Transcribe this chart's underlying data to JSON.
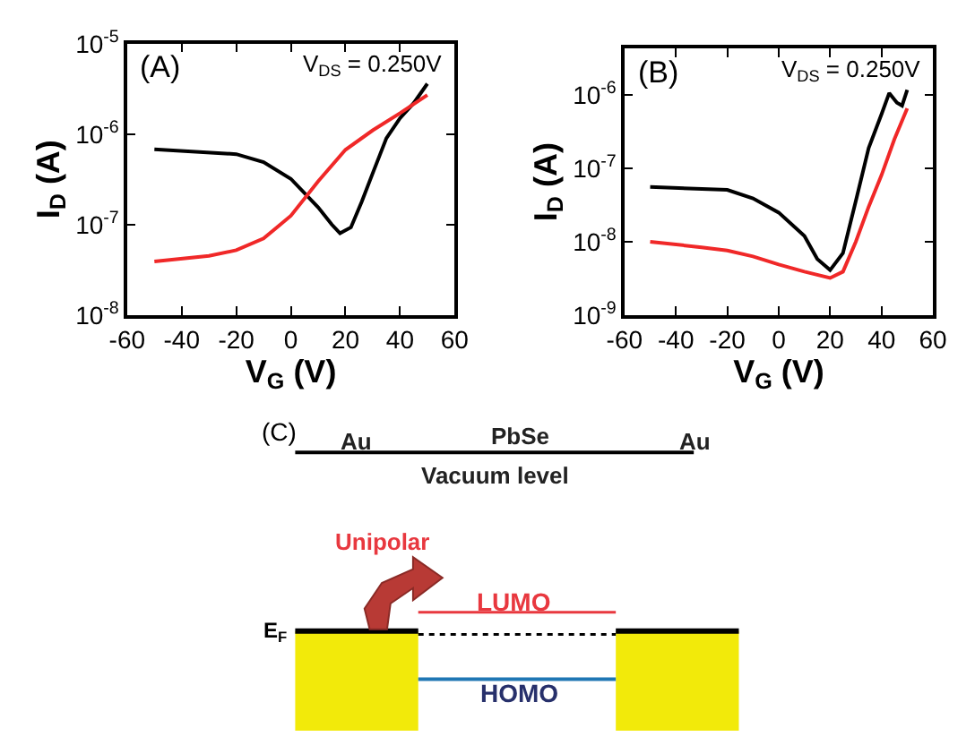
{
  "chart_data": [
    {
      "type": "line",
      "xlabel": "V$_{G}$ (V)",
      "ylabel": "I$_{D}$ (A)",
      "annotations": [
        "(A)",
        "V$_{DS}$ = 0.250V"
      ],
      "log": "y",
      "marker": "none",
      "line_style": "solid",
      "xlim": [
        -60,
        60
      ],
      "xticks": [
        -60,
        -40,
        -20,
        0,
        20,
        40,
        60
      ],
      "ylim": [
        1e-08,
        1e-05
      ],
      "yticks": [
        {
          "value": 1e-08,
          "label": "10$^{-8}$"
        },
        {
          "value": 1e-07,
          "label": "10$^{-7}$"
        },
        {
          "value": 1e-06,
          "label": "10$^{-6}$"
        },
        {
          "value": 1e-05,
          "label": "10$^{-5}$"
        }
      ],
      "series": [
        {
          "color": "#000000",
          "x": [
            -50,
            -20,
            -10,
            0,
            10,
            15,
            18,
            22,
            26,
            30,
            35,
            40,
            45,
            50
          ],
          "values": [
            6.8e-07,
            6e-07,
            4.9e-07,
            3.2e-07,
            1.55e-07,
            1e-07,
            8e-08,
            9.3e-08,
            1.8e-07,
            3.7e-07,
            9e-07,
            1.5e-06,
            2.2e-06,
            3.6e-06
          ]
        },
        {
          "color": "#f02828",
          "x": [
            -50,
            -30,
            -20,
            -10,
            0,
            10,
            20,
            30,
            40,
            50
          ],
          "values": [
            3.9e-08,
            4.5e-08,
            5.2e-08,
            7e-08,
            1.25e-07,
            3e-07,
            6.7e-07,
            1.1e-06,
            1.7e-06,
            2.7e-06
          ]
        }
      ]
    },
    {
      "type": "line",
      "xlabel": "V$_{G}$ (V)",
      "ylabel": "I$_{D}$ (A)",
      "annotations": [
        "(B)",
        "V$_{DS}$ = 0.250V"
      ],
      "log": "y",
      "marker": "none",
      "line_style": "solid",
      "xlim": [
        -60,
        60
      ],
      "xticks": [
        -60,
        -40,
        -20,
        0,
        20,
        40,
        60
      ],
      "ylim": [
        1e-09,
        4.3e-06
      ],
      "yticks": [
        {
          "value": 1e-09,
          "label": "10$^{-9}$"
        },
        {
          "value": 1e-08,
          "label": "10$^{-8}$"
        },
        {
          "value": 1e-07,
          "label": "10$^{-7}$"
        },
        {
          "value": 1e-06,
          "label": "10$^{-6}$"
        }
      ],
      "series": [
        {
          "color": "#000000",
          "x": [
            -50,
            -20,
            -10,
            0,
            10,
            15,
            20,
            25,
            30,
            35,
            40,
            43,
            46,
            48,
            50
          ],
          "values": [
            5.6e-08,
            5.1e-08,
            3.9e-08,
            2.5e-08,
            1.2e-08,
            5.8e-09,
            4.1e-09,
            7e-09,
            3.6e-08,
            1.9e-07,
            5.5e-07,
            1.07e-06,
            7.9e-07,
            7.2e-07,
            1.18e-06
          ]
        },
        {
          "color": "#f02828",
          "x": [
            -50,
            -30,
            -20,
            -10,
            0,
            10,
            20,
            25,
            30,
            35,
            40,
            45,
            50
          ],
          "values": [
            1e-08,
            8.4e-09,
            7.6e-09,
            6.3e-09,
            4.9e-09,
            3.9e-09,
            3.2e-09,
            3.9e-09,
            1e-08,
            3e-08,
            8.1e-08,
            2.5e-07,
            6.6e-07
          ]
        }
      ]
    },
    {
      "type": "other",
      "annotations": [
        "(C)",
        "Au",
        "PbSe",
        "Au",
        "Vacuum level",
        "Unipolar",
        "LUMO",
        "E$_{F}$",
        "HOMO"
      ]
    }
  ]
}
